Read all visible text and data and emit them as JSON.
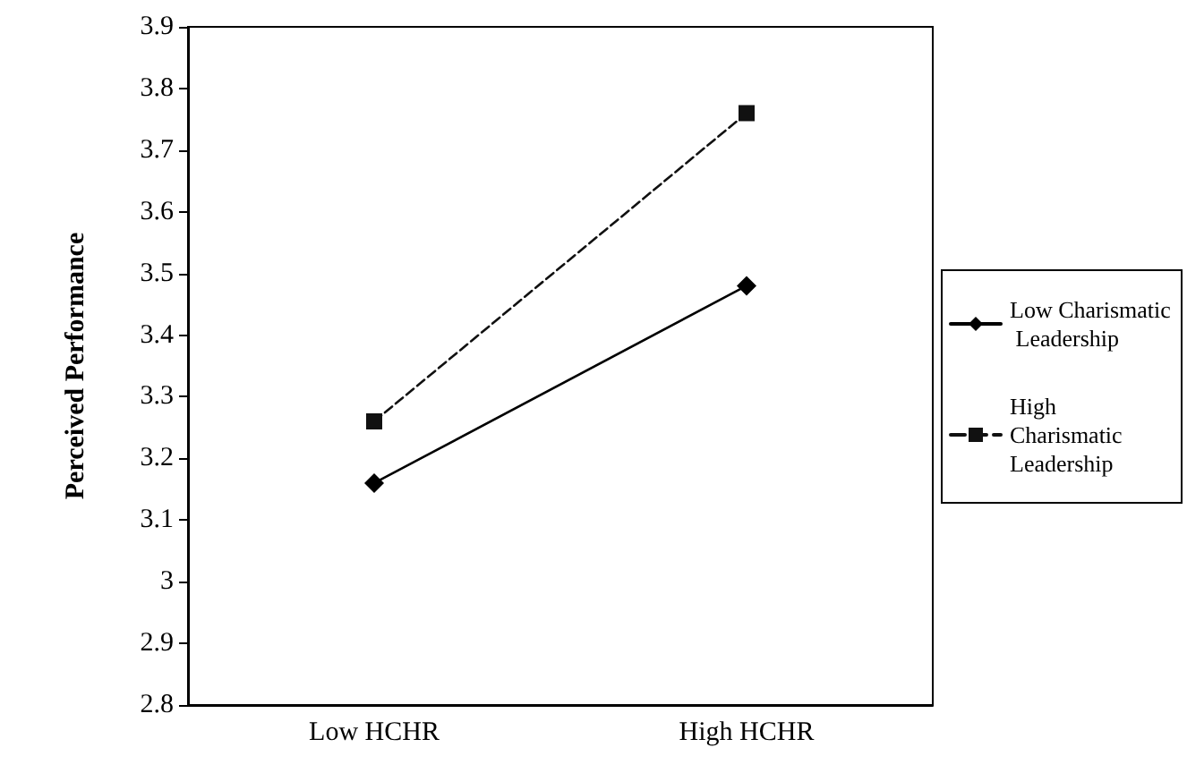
{
  "chart_data": {
    "type": "line",
    "ylabel": "Perceived Performance",
    "categories": [
      "Low HCHR",
      "High HCHR"
    ],
    "series": [
      {
        "name": "Low Charismatic Leadership",
        "color": "#000000",
        "values": [
          3.16,
          3.48
        ],
        "marker": "diamond",
        "line_style": "solid"
      },
      {
        "name": "High Charismatic Leadership",
        "color": "#111111",
        "values": [
          3.26,
          3.76
        ],
        "marker": "square",
        "line_style": "dashed"
      }
    ],
    "ylim": [
      2.8,
      3.9
    ],
    "yticks": [
      2.8,
      2.9,
      3,
      3.1,
      3.2,
      3.3,
      3.4,
      3.5,
      3.6,
      3.7,
      3.8,
      3.9
    ],
    "grid": false,
    "legend": "right"
  }
}
